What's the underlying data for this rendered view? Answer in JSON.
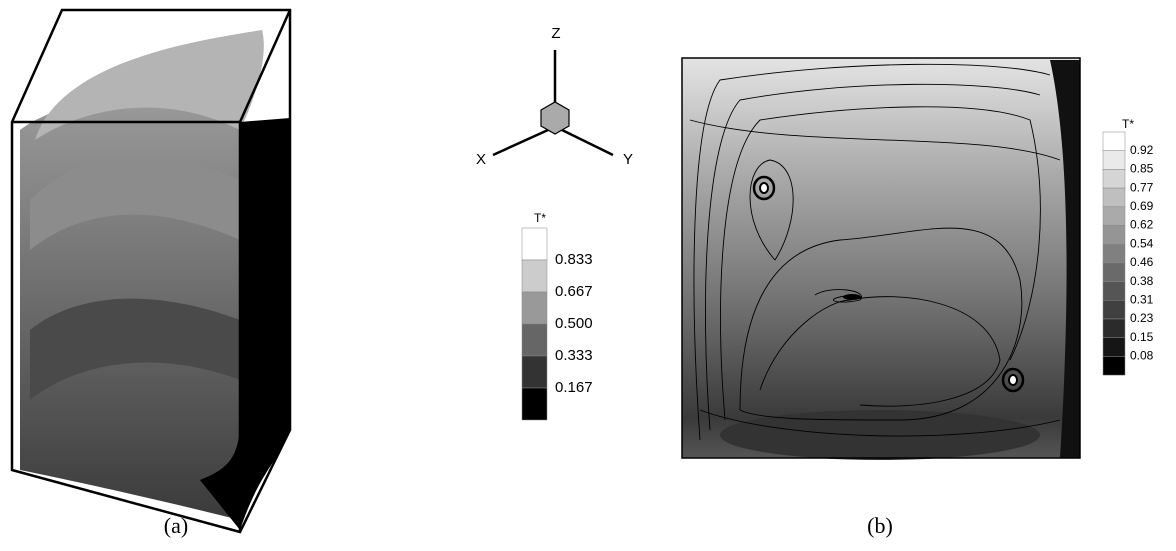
{
  "panel_a": {
    "axes": {
      "z": "Z",
      "x": "X",
      "y": "Y"
    },
    "legend_title": "T*",
    "levels": [
      "0.833",
      "0.667",
      "0.500",
      "0.333",
      "0.167"
    ],
    "caption": "(a)"
  },
  "panel_b": {
    "legend_title": "T*",
    "levels": [
      "0.92",
      "0.85",
      "0.77",
      "0.69",
      "0.62",
      "0.54",
      "0.46",
      "0.38",
      "0.31",
      "0.23",
      "0.15",
      "0.08"
    ],
    "caption": "(b)"
  }
}
